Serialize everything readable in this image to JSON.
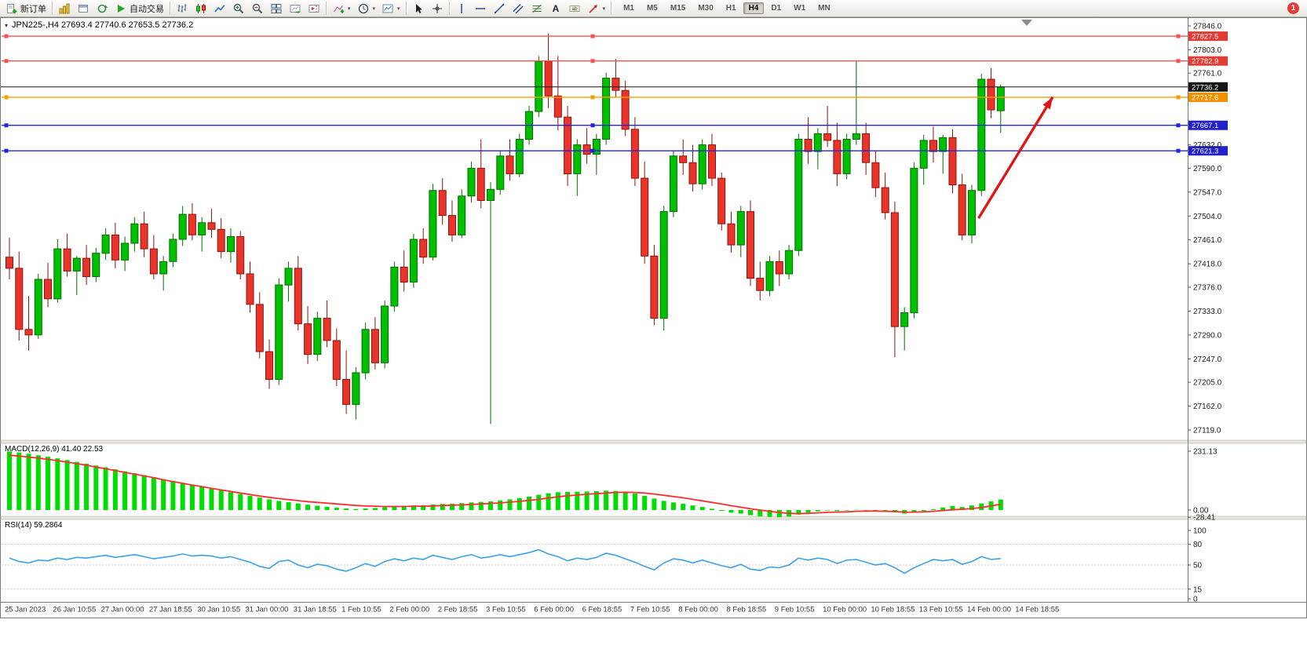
{
  "toolbar": {
    "new_order_label": "新订单",
    "autotrading_label": "自动交易",
    "timeframe_labels": [
      "M1",
      "M5",
      "M15",
      "M30",
      "H1",
      "H4",
      "D1",
      "W1",
      "MN"
    ],
    "active_timeframe": "H4",
    "notification_count": "1"
  },
  "chart": {
    "title": "JPN225-,H4  27693.4 27740.6 27653.5 27736.2",
    "macd_label": "MACD(12,26,9) 41.40 22.53",
    "rsi_label": "RSI(14) 59.2864"
  },
  "colors": {
    "up": "#00be00",
    "up_border": "#006e00",
    "down": "#e8352b",
    "down_border": "#8f130b",
    "red_line": "#ff5050",
    "red_badge": "#e23b34",
    "orange_line": "#f5a000",
    "orange_badge": "#ef9000",
    "blue_line": "#2424e0",
    "blue_badge": "#2020cc",
    "price_line": "#151515",
    "price_badge": "#151515",
    "macd_hist": "#00dd00",
    "macd_signal": "#ff2e2e",
    "rsi": "#3da0e8",
    "arrow": "#e01515"
  },
  "price_axis": {
    "ticks": [
      "27846.0",
      "27803.0",
      "27761.0",
      "27632.0",
      "27590.0",
      "27547.0",
      "27504.0",
      "27461.0",
      "27418.0",
      "27376.0",
      "27333.0",
      "27290.0",
      "27247.0",
      "27205.0",
      "27162.0",
      "27119.0"
    ]
  },
  "macd_axis": [
    "231.13",
    "0.00",
    "-28.41"
  ],
  "rsi_axis": [
    "100",
    "80",
    "50",
    "15",
    "0"
  ],
  "chart_data": {
    "type": "candlestick",
    "symbol": "JPN225-",
    "timeframe": "H4",
    "current_ohlc": {
      "open": 27693.4,
      "high": 27740.6,
      "low": 27653.5,
      "close": 27736.2
    },
    "time_labels": [
      "25 Jan 2023",
      "26 Jan 10:55",
      "27 Jan 00:00",
      "27 Jan 18:55",
      "30 Jan 10:55",
      "31 Jan 00:00",
      "31 Jan 18:55",
      "1 Feb 10:55",
      "2 Feb 00:00",
      "2 Feb 18:55",
      "3 Feb 10:55",
      "6 Feb 00:00",
      "6 Feb 18:55",
      "7 Feb 10:55",
      "8 Feb 00:00",
      "8 Feb 18:55",
      "9 Feb 10:55",
      "10 Feb 00:00",
      "10 Feb 18:55",
      "13 Feb 10:55",
      "14 Feb 00:00",
      "14 Feb 18:55"
    ],
    "candles": [
      [
        27430,
        27465,
        27390,
        27410
      ],
      [
        27410,
        27440,
        27280,
        27300
      ],
      [
        27300,
        27360,
        27262,
        27290
      ],
      [
        27290,
        27400,
        27283,
        27390
      ],
      [
        27390,
        27420,
        27340,
        27355
      ],
      [
        27355,
        27462,
        27348,
        27445
      ],
      [
        27445,
        27472,
        27395,
        27405
      ],
      [
        27405,
        27432,
        27362,
        27428
      ],
      [
        27428,
        27452,
        27380,
        27395
      ],
      [
        27395,
        27447,
        27385,
        27437
      ],
      [
        27437,
        27482,
        27425,
        27470
      ],
      [
        27470,
        27492,
        27410,
        27425
      ],
      [
        27425,
        27467,
        27405,
        27455
      ],
      [
        27455,
        27502,
        27440,
        27490
      ],
      [
        27490,
        27512,
        27430,
        27445
      ],
      [
        27445,
        27470,
        27390,
        27400
      ],
      [
        27400,
        27432,
        27370,
        27422
      ],
      [
        27422,
        27472,
        27412,
        27462
      ],
      [
        27462,
        27522,
        27450,
        27507
      ],
      [
        27507,
        27527,
        27460,
        27470
      ],
      [
        27470,
        27502,
        27440,
        27492
      ],
      [
        27492,
        27517,
        27465,
        27480
      ],
      [
        27480,
        27500,
        27428,
        27440
      ],
      [
        27440,
        27482,
        27420,
        27467
      ],
      [
        27467,
        27477,
        27390,
        27400
      ],
      [
        27400,
        27422,
        27330,
        27345
      ],
      [
        27345,
        27367,
        27248,
        27260
      ],
      [
        27260,
        27282,
        27193,
        27210
      ],
      [
        27210,
        27392,
        27200,
        27380
      ],
      [
        27380,
        27422,
        27350,
        27410
      ],
      [
        27410,
        27432,
        27298,
        27310
      ],
      [
        27310,
        27342,
        27238,
        27255
      ],
      [
        27255,
        27332,
        27243,
        27320
      ],
      [
        27320,
        27352,
        27268,
        27280
      ],
      [
        27280,
        27302,
        27198,
        27210
      ],
      [
        27210,
        27262,
        27148,
        27165
      ],
      [
        27165,
        27232,
        27138,
        27222
      ],
      [
        27222,
        27312,
        27210,
        27300
      ],
      [
        27300,
        27322,
        27228,
        27240
      ],
      [
        27240,
        27352,
        27230,
        27342
      ],
      [
        27342,
        27422,
        27332,
        27412
      ],
      [
        27412,
        27442,
        27368,
        27385
      ],
      [
        27385,
        27472,
        27375,
        27462
      ],
      [
        27462,
        27482,
        27418,
        27430
      ],
      [
        27430,
        27562,
        27424,
        27550
      ],
      [
        27550,
        27572,
        27488,
        27505
      ],
      [
        27505,
        27532,
        27458,
        27470
      ],
      [
        27470,
        27552,
        27464,
        27540
      ],
      [
        27540,
        27602,
        27528,
        27590
      ],
      [
        27590,
        27642,
        27518,
        27532
      ],
      [
        27532,
        27565,
        27130,
        27552
      ],
      [
        27552,
        27622,
        27542,
        27612
      ],
      [
        27612,
        27642,
        27568,
        27580
      ],
      [
        27580,
        27652,
        27574,
        27642
      ],
      [
        27642,
        27702,
        27632,
        27692
      ],
      [
        27692,
        27792,
        27682,
        27782
      ],
      [
        27782,
        27832,
        27698,
        27720
      ],
      [
        27720,
        27792,
        27658,
        27682
      ],
      [
        27682,
        27702,
        27558,
        27580
      ],
      [
        27580,
        27642,
        27540,
        27632
      ],
      [
        27632,
        27662,
        27598,
        27615
      ],
      [
        27615,
        27652,
        27578,
        27642
      ],
      [
        27642,
        27762,
        27632,
        27752
      ],
      [
        27752,
        27787,
        27718,
        27730
      ],
      [
        27730,
        27747,
        27648,
        27660
      ],
      [
        27660,
        27682,
        27558,
        27572
      ],
      [
        27572,
        27602,
        27418,
        27432
      ],
      [
        27432,
        27452,
        27308,
        27320
      ],
      [
        27320,
        27522,
        27298,
        27512
      ],
      [
        27512,
        27622,
        27502,
        27612
      ],
      [
        27612,
        27642,
        27578,
        27600
      ],
      [
        27600,
        27632,
        27548,
        27562
      ],
      [
        27562,
        27642,
        27552,
        27632
      ],
      [
        27632,
        27652,
        27558,
        27572
      ],
      [
        27572,
        27582,
        27478,
        27490
      ],
      [
        27490,
        27512,
        27438,
        27452
      ],
      [
        27452,
        27522,
        27430,
        27512
      ],
      [
        27512,
        27532,
        27378,
        27392
      ],
      [
        27392,
        27422,
        27352,
        27370
      ],
      [
        27370,
        27432,
        27360,
        27422
      ],
      [
        27422,
        27442,
        27378,
        27400
      ],
      [
        27400,
        27452,
        27390,
        27442
      ],
      [
        27442,
        27652,
        27432,
        27642
      ],
      [
        27642,
        27682,
        27598,
        27620
      ],
      [
        27620,
        27662,
        27588,
        27652
      ],
      [
        27652,
        27702,
        27628,
        27640
      ],
      [
        27640,
        27672,
        27558,
        27580
      ],
      [
        27580,
        27652,
        27570,
        27642
      ],
      [
        27642,
        27782,
        27632,
        27652
      ],
      [
        27652,
        27672,
        27578,
        27600
      ],
      [
        27600,
        27622,
        27538,
        27555
      ],
      [
        27555,
        27582,
        27498,
        27510
      ],
      [
        27510,
        27530,
        27250,
        27305
      ],
      [
        27305,
        27340,
        27262,
        27330
      ],
      [
        27330,
        27600,
        27320,
        27590
      ],
      [
        27590,
        27650,
        27560,
        27640
      ],
      [
        27640,
        27665,
        27600,
        27620
      ],
      [
        27620,
        27650,
        27580,
        27645
      ],
      [
        27645,
        27660,
        27545,
        27560
      ],
      [
        27560,
        27580,
        27460,
        27470
      ],
      [
        27470,
        27560,
        27455,
        27550
      ],
      [
        27550,
        27760,
        27540,
        27750
      ],
      [
        27750,
        27770,
        27680,
        27695
      ],
      [
        27693.4,
        27740.6,
        27653.5,
        27736.2
      ]
    ],
    "hlines": [
      {
        "price": 27827.5,
        "label": "27827.5",
        "color_key": "red"
      },
      {
        "price": 27782.9,
        "label": "27782.9",
        "color_key": "red"
      },
      {
        "price": 27717.6,
        "label": "27717.6",
        "color_key": "orange"
      },
      {
        "price": 27667.1,
        "label": "27667.1",
        "color_key": "blue"
      },
      {
        "price": 27621.3,
        "label": "27621.3",
        "color_key": "blue"
      }
    ],
    "current_price": {
      "price": 27736.2,
      "label": "27736.2"
    },
    "arrow_annotation": {
      "from": [
        100.7,
        27500
      ],
      "to": [
        108.4,
        27718
      ]
    },
    "macd": {
      "histogram": [
        230,
        226,
        221,
        215,
        209,
        203,
        196,
        189,
        182,
        175,
        168,
        160,
        152,
        145,
        137,
        129,
        121,
        113,
        106,
        98,
        91,
        84,
        77,
        70,
        63,
        56,
        49,
        42,
        36,
        31,
        26,
        21,
        17,
        13,
        9,
        6,
        4,
        6,
        8,
        11,
        14,
        16,
        18,
        19,
        22,
        24,
        25,
        27,
        30,
        32,
        34,
        38,
        42,
        47,
        53,
        60,
        66,
        70,
        71,
        72,
        73,
        74,
        76,
        75,
        71,
        65,
        56,
        45,
        36,
        30,
        25,
        18,
        12,
        5,
        -3,
        -10,
        -14,
        -20,
        -25,
        -27,
        -28,
        -26,
        -18,
        -10,
        -5,
        -2,
        -4,
        -2,
        1,
        -1,
        -4,
        -6,
        -9,
        -14,
        -10,
        -4,
        3,
        10,
        16,
        12,
        18,
        26,
        34,
        41.4
      ],
      "signal": [
        215,
        212,
        208,
        204,
        199,
        194,
        188,
        182,
        176,
        169,
        162,
        155,
        148,
        141,
        134,
        127,
        119,
        112,
        105,
        98,
        92,
        85,
        79,
        73,
        67,
        61,
        55,
        50,
        45,
        41,
        37,
        33,
        30,
        27,
        24,
        21,
        18,
        16,
        15,
        14,
        14,
        14,
        15,
        15,
        16,
        18,
        19,
        20,
        22,
        24,
        26,
        28,
        31,
        34,
        38,
        42,
        47,
        52,
        56,
        59,
        62,
        64,
        67,
        69,
        70,
        69,
        67,
        63,
        58,
        53,
        48,
        42,
        36,
        30,
        24,
        17,
        11,
        5,
        0,
        -5,
        -10,
        -13,
        -14,
        -13,
        -11,
        -9,
        -8,
        -7,
        -5,
        -4,
        -4,
        -5,
        -6,
        -8,
        -8,
        -7,
        -5,
        -2,
        1,
        3,
        6,
        10,
        16,
        22.5
      ]
    },
    "rsi": {
      "values": [
        60,
        55,
        53,
        57,
        56,
        60,
        58,
        61,
        60,
        62,
        64,
        61,
        63,
        65,
        62,
        59,
        61,
        63,
        66,
        63,
        64,
        63,
        60,
        62,
        58,
        54,
        48,
        45,
        55,
        57,
        50,
        46,
        51,
        49,
        44,
        41,
        46,
        52,
        48,
        55,
        59,
        56,
        60,
        58,
        64,
        61,
        58,
        62,
        65,
        60,
        62,
        65,
        62,
        65,
        68,
        72,
        66,
        62,
        56,
        60,
        58,
        61,
        67,
        64,
        59,
        54,
        48,
        43,
        53,
        59,
        57,
        53,
        57,
        53,
        49,
        46,
        51,
        44,
        42,
        47,
        46,
        50,
        60,
        57,
        60,
        58,
        52,
        57,
        58,
        54,
        50,
        52,
        46,
        38,
        46,
        52,
        58,
        56,
        58,
        51,
        55,
        62,
        58,
        59.29
      ],
      "levels": [
        80,
        50,
        15
      ]
    }
  }
}
